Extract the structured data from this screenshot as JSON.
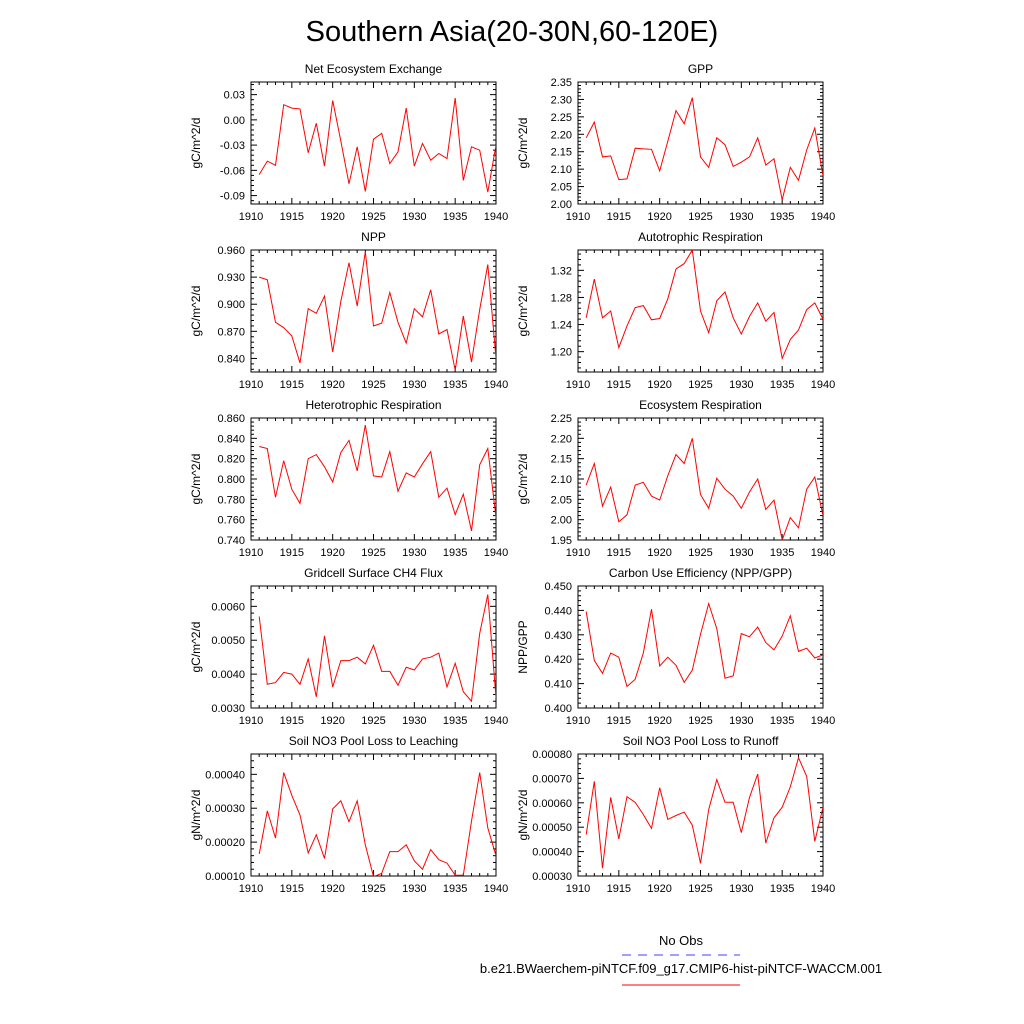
{
  "figure": {
    "title": "Southern Asia(20-30N,60-120E)",
    "legend": [
      {
        "label": "No Obs",
        "color": "#4040ff",
        "dash": true
      },
      {
        "label": "b.e21.BWaerchem-piNTCF.f09_g17.CMIP6-hist-piNTCF-WACCM.001",
        "color": "#ff0000",
        "dash": false
      }
    ]
  },
  "chart_data": [
    {
      "type": "line",
      "title": "Net Ecosystem Exchange",
      "ylabel": "gC/m^2/d",
      "xlim": [
        1910,
        1940
      ],
      "ylim": [
        -0.1,
        0.045
      ],
      "xticks": [
        1910,
        1915,
        1920,
        1925,
        1930,
        1935,
        1940
      ],
      "yticks": [
        -0.09,
        -0.06,
        -0.03,
        0.0,
        0.03
      ],
      "ytick_labels": [
        "-0.09",
        "-0.06",
        "-0.03",
        "0.00",
        "0.03"
      ],
      "x": [
        1911,
        1912,
        1913,
        1914,
        1915,
        1916,
        1917,
        1918,
        1919,
        1920,
        1921,
        1922,
        1923,
        1924,
        1925,
        1926,
        1927,
        1928,
        1929,
        1930,
        1931,
        1932,
        1933,
        1934,
        1935,
        1936,
        1937,
        1938,
        1939,
        1940
      ],
      "series": [
        {
          "color": "#ff0000",
          "values": [
            -0.065,
            -0.049,
            -0.054,
            0.018,
            0.014,
            0.013,
            -0.039,
            -0.004,
            -0.055,
            0.023,
            -0.025,
            -0.076,
            -0.032,
            -0.085,
            -0.023,
            -0.016,
            -0.052,
            -0.038,
            0.014,
            -0.055,
            -0.028,
            -0.048,
            -0.04,
            -0.046,
            0.026,
            -0.072,
            -0.032,
            -0.036,
            -0.086,
            -0.03
          ]
        }
      ]
    },
    {
      "type": "line",
      "title": "GPP",
      "ylabel": "gC/m^2/d",
      "xlim": [
        1910,
        1940
      ],
      "ylim": [
        2.0,
        2.35
      ],
      "xticks": [
        1910,
        1915,
        1920,
        1925,
        1930,
        1935,
        1940
      ],
      "yticks": [
        2.0,
        2.05,
        2.1,
        2.15,
        2.2,
        2.25,
        2.3,
        2.35
      ],
      "ytick_labels": [
        "2.00",
        "2.05",
        "2.10",
        "2.15",
        "2.20",
        "2.25",
        "2.30",
        "2.35"
      ],
      "x": [
        1911,
        1912,
        1913,
        1914,
        1915,
        1916,
        1917,
        1918,
        1919,
        1920,
        1921,
        1922,
        1923,
        1924,
        1925,
        1926,
        1927,
        1928,
        1929,
        1930,
        1931,
        1932,
        1933,
        1934,
        1935,
        1936,
        1937,
        1938,
        1939,
        1940
      ],
      "series": [
        {
          "color": "#ff0000",
          "values": [
            2.19,
            2.235,
            2.135,
            2.138,
            2.07,
            2.072,
            2.16,
            2.158,
            2.157,
            2.095,
            2.18,
            2.268,
            2.23,
            2.305,
            2.135,
            2.105,
            2.19,
            2.17,
            2.108,
            2.12,
            2.135,
            2.19,
            2.112,
            2.13,
            2.012,
            2.105,
            2.068,
            2.155,
            2.218,
            2.08
          ]
        }
      ]
    },
    {
      "type": "line",
      "title": "NPP",
      "ylabel": "gC/m^2/d",
      "xlim": [
        1910,
        1940
      ],
      "ylim": [
        0.825,
        0.96
      ],
      "xticks": [
        1910,
        1915,
        1920,
        1925,
        1930,
        1935,
        1940
      ],
      "yticks": [
        0.84,
        0.87,
        0.9,
        0.93,
        0.96
      ],
      "ytick_labels": [
        "0.840",
        "0.870",
        "0.900",
        "0.930",
        "0.960"
      ],
      "x": [
        1911,
        1912,
        1913,
        1914,
        1915,
        1916,
        1917,
        1918,
        1919,
        1920,
        1921,
        1922,
        1923,
        1924,
        1925,
        1926,
        1927,
        1928,
        1929,
        1930,
        1931,
        1932,
        1933,
        1934,
        1935,
        1936,
        1937,
        1938,
        1939,
        1940
      ],
      "series": [
        {
          "color": "#ff0000",
          "values": [
            0.93,
            0.927,
            0.88,
            0.874,
            0.865,
            0.835,
            0.895,
            0.89,
            0.909,
            0.847,
            0.903,
            0.946,
            0.898,
            0.958,
            0.876,
            0.879,
            0.913,
            0.88,
            0.857,
            0.895,
            0.886,
            0.916,
            0.867,
            0.872,
            0.827,
            0.887,
            0.836,
            0.894,
            0.944,
            0.84
          ]
        }
      ]
    },
    {
      "type": "line",
      "title": "Autotrophic Respiration",
      "ylabel": "gC/m^2/d",
      "xlim": [
        1910,
        1940
      ],
      "ylim": [
        1.17,
        1.35
      ],
      "xticks": [
        1910,
        1915,
        1920,
        1925,
        1930,
        1935,
        1940
      ],
      "yticks": [
        1.2,
        1.24,
        1.28,
        1.32
      ],
      "ytick_labels": [
        "1.20",
        "1.24",
        "1.28",
        "1.32"
      ],
      "x": [
        1911,
        1912,
        1913,
        1914,
        1915,
        1916,
        1917,
        1918,
        1919,
        1920,
        1921,
        1922,
        1923,
        1924,
        1925,
        1926,
        1927,
        1928,
        1929,
        1930,
        1931,
        1932,
        1933,
        1934,
        1935,
        1936,
        1937,
        1938,
        1939,
        1940
      ],
      "series": [
        {
          "color": "#ff0000",
          "values": [
            1.25,
            1.307,
            1.25,
            1.26,
            1.206,
            1.238,
            1.265,
            1.268,
            1.247,
            1.249,
            1.278,
            1.322,
            1.33,
            1.35,
            1.26,
            1.228,
            1.275,
            1.288,
            1.25,
            1.226,
            1.252,
            1.272,
            1.245,
            1.258,
            1.19,
            1.218,
            1.232,
            1.262,
            1.272,
            1.248
          ]
        }
      ]
    },
    {
      "type": "line",
      "title": "Heterotrophic Respiration",
      "ylabel": "gC/m^2/d",
      "xlim": [
        1910,
        1940
      ],
      "ylim": [
        0.74,
        0.86
      ],
      "xticks": [
        1910,
        1915,
        1920,
        1925,
        1930,
        1935,
        1940
      ],
      "yticks": [
        0.74,
        0.76,
        0.78,
        0.8,
        0.82,
        0.84,
        0.86
      ],
      "ytick_labels": [
        "0.740",
        "0.760",
        "0.780",
        "0.800",
        "0.820",
        "0.840",
        "0.860"
      ],
      "x": [
        1911,
        1912,
        1913,
        1914,
        1915,
        1916,
        1917,
        1918,
        1919,
        1920,
        1921,
        1922,
        1923,
        1924,
        1925,
        1926,
        1927,
        1928,
        1929,
        1930,
        1931,
        1932,
        1933,
        1934,
        1935,
        1936,
        1937,
        1938,
        1939,
        1940
      ],
      "series": [
        {
          "color": "#ff0000",
          "values": [
            0.832,
            0.83,
            0.782,
            0.818,
            0.79,
            0.776,
            0.82,
            0.824,
            0.812,
            0.797,
            0.826,
            0.838,
            0.808,
            0.853,
            0.803,
            0.802,
            0.827,
            0.788,
            0.806,
            0.802,
            0.815,
            0.827,
            0.782,
            0.791,
            0.765,
            0.785,
            0.749,
            0.814,
            0.83,
            0.762
          ]
        }
      ]
    },
    {
      "type": "line",
      "title": "Ecosystem Respiration",
      "ylabel": "gC/m^2/d",
      "xlim": [
        1910,
        1940
      ],
      "ylim": [
        1.95,
        2.25
      ],
      "xticks": [
        1910,
        1915,
        1920,
        1925,
        1930,
        1935,
        1940
      ],
      "yticks": [
        1.95,
        2.0,
        2.05,
        2.1,
        2.15,
        2.2,
        2.25
      ],
      "ytick_labels": [
        "1.95",
        "2.00",
        "2.05",
        "2.10",
        "2.15",
        "2.20",
        "2.25"
      ],
      "x": [
        1911,
        1912,
        1913,
        1914,
        1915,
        1916,
        1917,
        1918,
        1919,
        1920,
        1921,
        1922,
        1923,
        1924,
        1925,
        1926,
        1927,
        1928,
        1929,
        1930,
        1931,
        1932,
        1933,
        1934,
        1935,
        1936,
        1937,
        1938,
        1939,
        1940
      ],
      "series": [
        {
          "color": "#ff0000",
          "values": [
            2.085,
            2.138,
            2.033,
            2.08,
            1.995,
            2.012,
            2.085,
            2.092,
            2.058,
            2.048,
            2.108,
            2.16,
            2.138,
            2.2,
            2.062,
            2.028,
            2.102,
            2.075,
            2.058,
            2.028,
            2.068,
            2.1,
            2.025,
            2.048,
            1.95,
            2.005,
            1.98,
            2.075,
            2.105,
            2.01
          ]
        }
      ]
    },
    {
      "type": "line",
      "title": "Gridcell Surface CH4 Flux",
      "ylabel": "gC/m^2/d",
      "xlim": [
        1910,
        1940
      ],
      "ylim": [
        0.003,
        0.0066
      ],
      "xticks": [
        1910,
        1915,
        1920,
        1925,
        1930,
        1935,
        1940
      ],
      "yticks": [
        0.003,
        0.004,
        0.005,
        0.006
      ],
      "ytick_labels": [
        "0.0030",
        "0.0040",
        "0.0050",
        "0.0060"
      ],
      "x": [
        1911,
        1912,
        1913,
        1914,
        1915,
        1916,
        1917,
        1918,
        1919,
        1920,
        1921,
        1922,
        1923,
        1924,
        1925,
        1926,
        1927,
        1928,
        1929,
        1930,
        1931,
        1932,
        1933,
        1934,
        1935,
        1936,
        1937,
        1938,
        1939,
        1940
      ],
      "series": [
        {
          "color": "#ff0000",
          "values": [
            0.0057,
            0.0037,
            0.00375,
            0.00405,
            0.004,
            0.0037,
            0.00445,
            0.00333,
            0.00513,
            0.00362,
            0.0044,
            0.0044,
            0.0045,
            0.0043,
            0.00485,
            0.00408,
            0.00408,
            0.00367,
            0.0042,
            0.00412,
            0.00445,
            0.0045,
            0.00462,
            0.00362,
            0.00432,
            0.00348,
            0.0032,
            0.0052,
            0.00635,
            0.0033
          ]
        }
      ]
    },
    {
      "type": "line",
      "title": "Carbon Use Efficiency (NPP/GPP)",
      "ylabel": "NPP/GPP",
      "xlim": [
        1910,
        1940
      ],
      "ylim": [
        0.4,
        0.45
      ],
      "xticks": [
        1910,
        1915,
        1920,
        1925,
        1930,
        1935,
        1940
      ],
      "yticks": [
        0.4,
        0.41,
        0.42,
        0.43,
        0.44,
        0.45
      ],
      "ytick_labels": [
        "0.400",
        "0.410",
        "0.420",
        "0.430",
        "0.440",
        "0.450"
      ],
      "x": [
        1911,
        1912,
        1913,
        1914,
        1915,
        1916,
        1917,
        1918,
        1919,
        1920,
        1921,
        1922,
        1923,
        1924,
        1925,
        1926,
        1927,
        1928,
        1929,
        1930,
        1931,
        1932,
        1933,
        1934,
        1935,
        1936,
        1937,
        1938,
        1939,
        1940
      ],
      "series": [
        {
          "color": "#ff0000",
          "values": [
            0.4395,
            0.4195,
            0.4142,
            0.4225,
            0.4208,
            0.4088,
            0.4118,
            0.4225,
            0.4405,
            0.4172,
            0.4208,
            0.4175,
            0.4105,
            0.4155,
            0.4302,
            0.4428,
            0.4325,
            0.4122,
            0.4132,
            0.4305,
            0.4292,
            0.4332,
            0.4268,
            0.4238,
            0.4295,
            0.4378,
            0.4232,
            0.4245,
            0.4205,
            0.4218
          ]
        }
      ]
    },
    {
      "type": "line",
      "title": "Soil NO3 Pool Loss to Leaching",
      "ylabel": "gN/m^2/d",
      "xlim": [
        1910,
        1940
      ],
      "ylim": [
        0.0001,
        0.00046
      ],
      "xticks": [
        1910,
        1915,
        1920,
        1925,
        1930,
        1935,
        1940
      ],
      "yticks": [
        0.0001,
        0.0002,
        0.0003,
        0.0004
      ],
      "ytick_labels": [
        "0.00010",
        "0.00020",
        "0.00030",
        "0.00040"
      ],
      "x": [
        1911,
        1912,
        1913,
        1914,
        1915,
        1916,
        1917,
        1918,
        1919,
        1920,
        1921,
        1922,
        1923,
        1924,
        1925,
        1926,
        1927,
        1928,
        1929,
        1930,
        1931,
        1932,
        1933,
        1934,
        1935,
        1936,
        1937,
        1938,
        1939,
        1940
      ],
      "series": [
        {
          "color": "#ff0000",
          "values": [
            0.000165,
            0.000292,
            0.000212,
            0.000405,
            0.000338,
            0.00028,
            0.000168,
            0.000222,
            0.000152,
            0.000298,
            0.000322,
            0.00026,
            0.000322,
            0.000192,
            9.8e-05,
            0.000108,
            0.000172,
            0.000172,
            0.000192,
            0.000145,
            0.00012,
            0.000178,
            0.000148,
            0.000138,
            0.000102,
            0.000102,
            0.000262,
            0.000405,
            0.000242,
            0.00016
          ]
        }
      ]
    },
    {
      "type": "line",
      "title": "Soil NO3 Pool Loss to Runoff",
      "ylabel": "gN/m^2/d",
      "xlim": [
        1910,
        1940
      ],
      "ylim": [
        0.0003,
        0.0008
      ],
      "xticks": [
        1910,
        1915,
        1920,
        1925,
        1930,
        1935,
        1940
      ],
      "yticks": [
        0.0003,
        0.0004,
        0.0005,
        0.0006,
        0.0007,
        0.0008
      ],
      "ytick_labels": [
        "0.00030",
        "0.00040",
        "0.00050",
        "0.00060",
        "0.00070",
        "0.00080"
      ],
      "x": [
        1911,
        1912,
        1913,
        1914,
        1915,
        1916,
        1917,
        1918,
        1919,
        1920,
        1921,
        1922,
        1923,
        1924,
        1925,
        1926,
        1927,
        1928,
        1929,
        1930,
        1931,
        1932,
        1933,
        1934,
        1935,
        1936,
        1937,
        1938,
        1939,
        1940
      ],
      "series": [
        {
          "color": "#ff0000",
          "values": [
            0.00047,
            0.000688,
            0.000332,
            0.000622,
            0.000452,
            0.000625,
            0.000602,
            0.000552,
            0.000495,
            0.000662,
            0.000532,
            0.000548,
            0.000562,
            0.000508,
            0.000352,
            0.000572,
            0.000695,
            0.000602,
            0.000602,
            0.000478,
            0.000622,
            0.000718,
            0.000435,
            0.000538,
            0.000582,
            0.000665,
            0.000785,
            0.000708,
            0.000442,
            0.000582
          ]
        }
      ]
    }
  ]
}
